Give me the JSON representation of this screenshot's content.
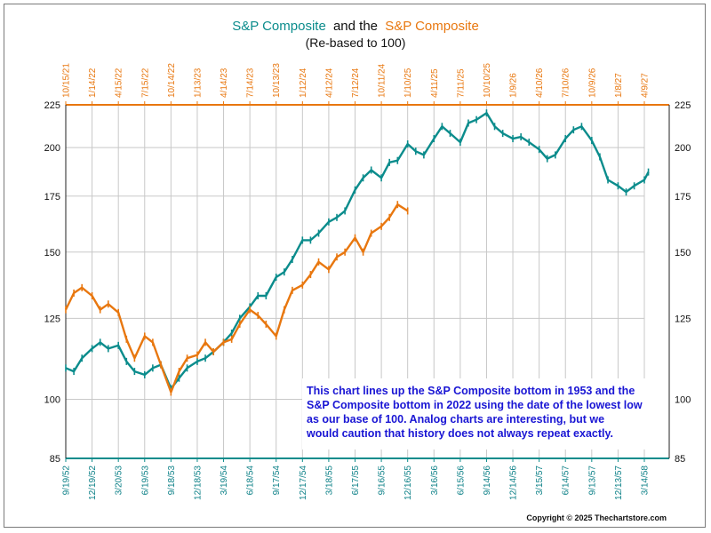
{
  "chart_data": {
    "type": "line",
    "title_parts": [
      "S&P Composite",
      "and the",
      "S&P Composite"
    ],
    "subtitle": "(Re-based to 100)",
    "colors": {
      "teal": "#0b8c8c",
      "orange": "#e8770f",
      "grid": "#c8c8c8",
      "note": "#1a16d4"
    },
    "y_scale": "log",
    "ylim": [
      85,
      225
    ],
    "yticks": [
      85,
      100,
      125,
      150,
      175,
      200,
      225
    ],
    "grid": true,
    "x_top_ticks": [
      "10/15/21",
      "1/14/22",
      "4/15/22",
      "7/15/22",
      "10/14/22",
      "1/13/23",
      "4/14/23",
      "7/14/23",
      "10/13/23",
      "1/12/24",
      "4/12/24",
      "7/12/24",
      "10/11/24",
      "1/10/25",
      "4/11/25",
      "7/11/25",
      "10/10/25",
      "1/9/26",
      "4/10/26",
      "7/10/26",
      "10/9/26",
      "1/8/27",
      "4/9/27"
    ],
    "x_bottom_ticks": [
      "9/19/52",
      "12/19/52",
      "3/20/53",
      "6/19/53",
      "9/18/53",
      "12/18/53",
      "3/19/54",
      "6/18/54",
      "9/17/54",
      "12/17/54",
      "3/18/55",
      "6/17/55",
      "9/16/55",
      "12/16/55",
      "3/16/56",
      "6/15/56",
      "9/14/56",
      "12/14/56",
      "3/15/57",
      "6/14/57",
      "9/13/57",
      "12/13/57",
      "3/14/58"
    ],
    "series": [
      {
        "name": "S&P Composite",
        "axis": "bottom",
        "color": "#0b8c8c",
        "x": [
          "9/19/52",
          "10/17/52",
          "11/14/52",
          "12/19/52",
          "1/16/53",
          "2/13/53",
          "3/20/53",
          "4/17/53",
          "5/15/53",
          "6/19/53",
          "7/17/53",
          "8/14/53",
          "9/18/53",
          "10/16/53",
          "11/13/53",
          "12/18/53",
          "1/15/54",
          "2/12/54",
          "3/19/54",
          "4/16/54",
          "5/14/54",
          "6/18/54",
          "7/16/54",
          "8/13/54",
          "9/17/54",
          "10/15/54",
          "11/12/54",
          "12/17/54",
          "1/14/55",
          "2/11/55",
          "3/18/55",
          "4/15/55",
          "5/13/55",
          "6/17/55",
          "7/15/55",
          "8/12/55",
          "9/16/55",
          "10/14/55",
          "11/11/55",
          "12/16/55",
          "1/13/56",
          "2/10/56",
          "3/16/56",
          "4/13/56",
          "5/11/56",
          "6/15/56",
          "7/13/56",
          "8/10/56",
          "9/14/56",
          "10/12/56",
          "11/9/56",
          "12/14/56",
          "1/11/57",
          "2/8/57",
          "3/15/57",
          "4/12/57",
          "5/10/57",
          "6/14/57",
          "7/12/57",
          "8/9/57",
          "9/13/57",
          "10/11/57",
          "11/8/57",
          "12/13/57",
          "1/10/58",
          "2/7/58",
          "3/14/58",
          "3/28/58"
        ],
        "values": [
          109,
          108,
          112,
          115,
          117,
          115,
          116,
          111,
          108,
          107,
          109,
          110,
          103,
          106,
          109,
          111,
          112,
          114,
          117,
          120,
          125,
          129,
          133,
          133,
          140,
          142,
          147,
          155,
          155,
          158,
          163,
          165,
          168,
          178,
          184,
          188,
          184,
          192,
          193,
          202,
          198,
          196,
          205,
          212,
          208,
          203,
          214,
          216,
          220,
          212,
          208,
          205,
          206,
          203,
          199,
          194,
          196,
          205,
          210,
          212,
          204,
          195,
          183,
          180,
          177,
          180,
          183,
          187
        ]
      },
      {
        "name": "S&P Composite",
        "axis": "top",
        "color": "#e8770f",
        "x": [
          "10/15/21",
          "11/12/21",
          "12/10/21",
          "1/14/22",
          "2/11/22",
          "3/11/22",
          "4/15/22",
          "5/13/22",
          "6/10/22",
          "7/15/22",
          "8/12/22",
          "9/9/22",
          "10/14/22",
          "11/11/22",
          "12/9/22",
          "1/13/23",
          "2/10/23",
          "3/10/23",
          "4/14/23",
          "5/12/23",
          "6/9/23",
          "7/14/23",
          "8/11/23",
          "9/8/23",
          "10/13/23",
          "11/10/23",
          "12/8/23",
          "1/12/24",
          "2/9/24",
          "3/8/24",
          "4/12/24",
          "5/10/24",
          "6/7/24",
          "7/12/24",
          "8/9/24",
          "9/6/24",
          "10/11/24",
          "11/8/24",
          "12/6/24",
          "1/10/25"
        ],
        "values": [
          128,
          134,
          136,
          133,
          128,
          130,
          127,
          118,
          112,
          119,
          117,
          110,
          102,
          108,
          112,
          113,
          117,
          114,
          117,
          118,
          123,
          128,
          126,
          123,
          119,
          128,
          135,
          137,
          141,
          146,
          143,
          148,
          150,
          156,
          150,
          158,
          161,
          165,
          171,
          168
        ]
      }
    ],
    "annotation": "This chart lines up the S&P Composite bottom in 1953 and the S&P Composite bottom in 2022 using the date of the lowest low as our base of 100.  Analog charts are interesting, but we would caution that history does not always repeat exactly.",
    "copyright": "Copyright © 2025 Thechartstore.com"
  }
}
